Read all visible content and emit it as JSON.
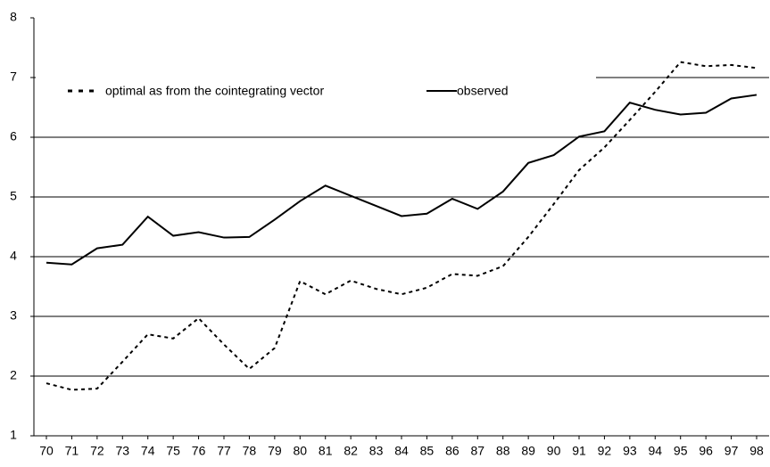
{
  "chart_data": {
    "type": "line",
    "categories": [
      "70",
      "71",
      "72",
      "73",
      "74",
      "75",
      "76",
      "77",
      "78",
      "79",
      "80",
      "81",
      "82",
      "83",
      "84",
      "85",
      "86",
      "87",
      "88",
      "89",
      "90",
      "91",
      "92",
      "93",
      "94",
      "95",
      "96",
      "97",
      "98"
    ],
    "series": [
      {
        "name": "optimal as from the cointegrating vector",
        "color": "#000000",
        "dash": true,
        "values": [
          1.88,
          1.77,
          1.79,
          2.24,
          2.7,
          2.63,
          2.97,
          2.53,
          2.12,
          2.47,
          3.59,
          3.37,
          3.6,
          3.46,
          3.37,
          3.48,
          3.71,
          3.68,
          3.84,
          4.33,
          4.88,
          5.45,
          5.83,
          6.29,
          6.76,
          7.26,
          7.19,
          7.21,
          7.16
        ]
      },
      {
        "name": "observed",
        "color": "#000000",
        "dash": false,
        "values": [
          3.9,
          3.87,
          4.14,
          4.2,
          4.67,
          4.35,
          4.41,
          4.32,
          4.33,
          4.62,
          4.93,
          5.19,
          5.02,
          4.85,
          4.68,
          4.72,
          4.97,
          4.8,
          5.09,
          5.57,
          5.7,
          6.01,
          6.1,
          6.58,
          6.46,
          6.38,
          6.41,
          6.65,
          6.71
        ]
      }
    ],
    "ylim": [
      1,
      8
    ],
    "yticks": [
      1,
      2,
      3,
      4,
      5,
      6,
      7,
      8
    ],
    "grid": true
  }
}
